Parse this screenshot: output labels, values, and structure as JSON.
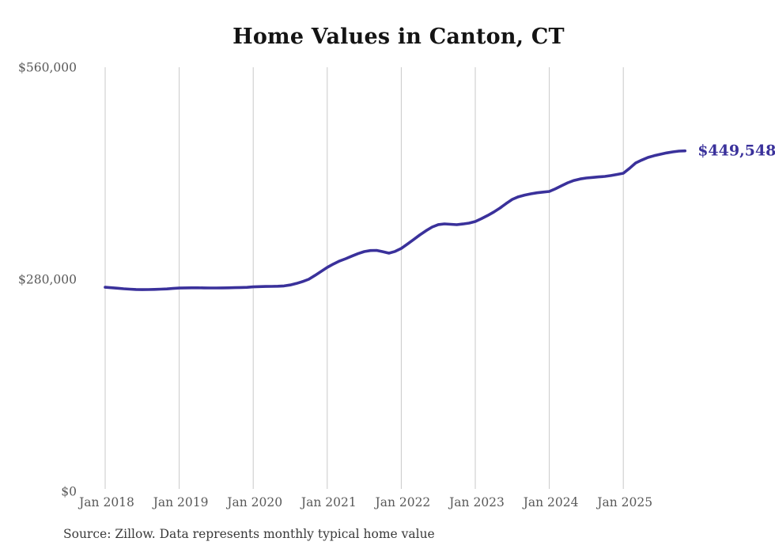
{
  "title": "Home Values in Canton, CT",
  "source_note": "Source: Zillow. Data represents monthly typical home value",
  "annotation": {
    "latest_value_label": "$449,548"
  },
  "colors": {
    "line": "#3a319b",
    "annotation_text": "#3a319b",
    "grid": "#c9c9c9",
    "axis_text": "#595959",
    "title_text": "#141414",
    "source_text": "#3a3a3a",
    "background": "#ffffff"
  },
  "chart_data": {
    "type": "line",
    "title": "Home Values in Canton, CT",
    "series_name": "Monthly typical home value ($)",
    "frequency": "monthly",
    "x_start": "2018-01",
    "x_end": "2025-11",
    "x": [
      "2018-01",
      "2018-02",
      "2018-03",
      "2018-04",
      "2018-05",
      "2018-06",
      "2018-07",
      "2018-08",
      "2018-09",
      "2018-10",
      "2018-11",
      "2018-12",
      "2019-01",
      "2019-02",
      "2019-03",
      "2019-04",
      "2019-05",
      "2019-06",
      "2019-07",
      "2019-08",
      "2019-09",
      "2019-10",
      "2019-11",
      "2019-12",
      "2020-01",
      "2020-02",
      "2020-03",
      "2020-04",
      "2020-05",
      "2020-06",
      "2020-07",
      "2020-08",
      "2020-09",
      "2020-10",
      "2020-11",
      "2020-12",
      "2021-01",
      "2021-02",
      "2021-03",
      "2021-04",
      "2021-05",
      "2021-06",
      "2021-07",
      "2021-08",
      "2021-09",
      "2021-10",
      "2021-11",
      "2021-12",
      "2022-01",
      "2022-02",
      "2022-03",
      "2022-04",
      "2022-05",
      "2022-06",
      "2022-07",
      "2022-08",
      "2022-09",
      "2022-10",
      "2022-11",
      "2022-12",
      "2023-01",
      "2023-02",
      "2023-03",
      "2023-04",
      "2023-05",
      "2023-06",
      "2023-07",
      "2023-08",
      "2023-09",
      "2023-10",
      "2023-11",
      "2023-12",
      "2024-01",
      "2024-02",
      "2024-03",
      "2024-04",
      "2024-05",
      "2024-06",
      "2024-07",
      "2024-08",
      "2024-09",
      "2024-10",
      "2024-11",
      "2024-12",
      "2025-01",
      "2025-02",
      "2025-03",
      "2025-04",
      "2025-05",
      "2025-06",
      "2025-07",
      "2025-08",
      "2025-09",
      "2025-10",
      "2025-11"
    ],
    "values": [
      269500,
      268800,
      268200,
      267500,
      266900,
      266500,
      266300,
      266400,
      266600,
      266900,
      267300,
      267900,
      268400,
      268600,
      268700,
      268700,
      268600,
      268500,
      268500,
      268600,
      268700,
      268900,
      269100,
      269300,
      270000,
      270300,
      270500,
      270600,
      270800,
      271200,
      272500,
      274500,
      277000,
      280000,
      285000,
      290300,
      295700,
      300200,
      304100,
      307200,
      310600,
      313900,
      316600,
      317900,
      318100,
      316500,
      314500,
      316800,
      320700,
      326500,
      332500,
      338500,
      344000,
      349000,
      352200,
      353100,
      352600,
      352100,
      353000,
      354200,
      356300,
      360000,
      364200,
      368800,
      374000,
      380000,
      385500,
      389000,
      391200,
      392800,
      394200,
      395100,
      396000,
      399500,
      403500,
      407500,
      410500,
      412500,
      413700,
      414500,
      415200,
      415800,
      417000,
      418400,
      420000,
      426500,
      433600,
      437500,
      440900,
      443200,
      445100,
      446800,
      448200,
      449254,
      449548
    ],
    "latest_value": 449548,
    "latest_value_label": "$449,548",
    "xlabel": "",
    "ylabel": "",
    "ylim": [
      0,
      560000
    ],
    "y_ticks": [
      0,
      280000,
      560000
    ],
    "y_tick_labels": [
      "$0",
      "$280,000",
      "$560,000"
    ],
    "x_tick_years": [
      2018,
      2019,
      2020,
      2021,
      2022,
      2023,
      2024,
      2025
    ],
    "x_tick_labels": [
      "Jan 2018",
      "Jan 2019",
      "Jan 2020",
      "Jan 2021",
      "Jan 2022",
      "Jan 2023",
      "Jan 2024",
      "Jan 2025"
    ],
    "grid": "vertical-only",
    "legend": "none"
  }
}
